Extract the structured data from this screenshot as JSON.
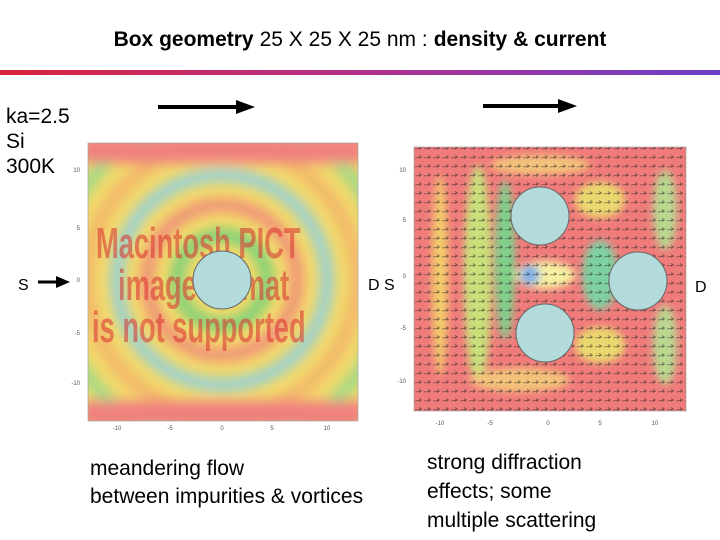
{
  "header": {
    "title": [
      "Box geometry",
      "25 X 25 X 25 nm :",
      "density & current"
    ]
  },
  "side_label": [
    "ka=2.5",
    "Si",
    "300K"
  ],
  "left_plot": {
    "source_label": "S",
    "drain_label": "D",
    "placeholder": [
      "Macintosh PICT",
      "image format",
      "is not supported"
    ],
    "x_ticks": [
      "-10",
      "-5",
      "0",
      "5",
      "10"
    ],
    "y_ticks": [
      "10",
      "5",
      "0",
      "-5",
      "-10"
    ]
  },
  "right_plot": {
    "source_label": "S",
    "drain_label": "D",
    "x_ticks": [
      "-10",
      "-5",
      "0",
      "5",
      "10"
    ],
    "y_ticks": [
      "10",
      "5",
      "0",
      "-5",
      "-10"
    ]
  },
  "captions": {
    "left": [
      "meandering flow",
      "between impurities & vortices"
    ],
    "right": [
      "strong diffraction",
      "effects; some",
      "multiple scattering"
    ]
  }
}
